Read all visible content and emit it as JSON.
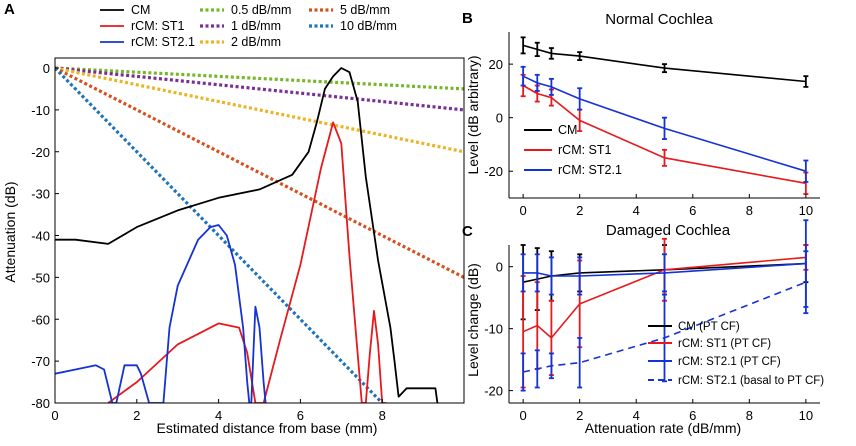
{
  "panel_letters": {
    "a": "A",
    "b": "B",
    "c": "C"
  },
  "chart_data": [
    {
      "id": "A",
      "type": "line",
      "xlabel": "Estimated distance from base (mm)",
      "ylabel": "Attenuation (dB)",
      "xlim": [
        0,
        10
      ],
      "ylim": [
        -80,
        2
      ],
      "xticks": [
        0,
        2,
        4,
        6,
        8
      ],
      "yticks": [
        0,
        -10,
        -20,
        -30,
        -40,
        -50,
        -60,
        -70,
        -80
      ],
      "legend": [
        {
          "label": "CM",
          "color": "#000000",
          "style": "solid"
        },
        {
          "label": "rCM: ST1",
          "color": "#e6191c",
          "style": "solid"
        },
        {
          "label": "rCM: ST2.1",
          "color": "#1532d6",
          "style": "solid"
        },
        {
          "label": "0.5 dB/mm",
          "color": "#76b62a",
          "style": "dotted"
        },
        {
          "label": "1 dB/mm",
          "color": "#7b2f92",
          "style": "dotted"
        },
        {
          "label": "2 dB/mm",
          "color": "#eab424",
          "style": "dotted"
        },
        {
          "label": "5 dB/mm",
          "color": "#d6501e",
          "style": "dotted"
        },
        {
          "label": "10 dB/mm",
          "color": "#1e73ba",
          "style": "dotted"
        }
      ],
      "series": [
        {
          "name": "0.5 dB/mm",
          "color": "#76b62a",
          "style": "dotted",
          "x": [
            0,
            10
          ],
          "y": [
            0,
            -5
          ]
        },
        {
          "name": "1 dB/mm",
          "color": "#7b2f92",
          "style": "dotted",
          "x": [
            0,
            10
          ],
          "y": [
            0,
            -10
          ]
        },
        {
          "name": "2 dB/mm",
          "color": "#eab424",
          "style": "dotted",
          "x": [
            0,
            10
          ],
          "y": [
            0,
            -20
          ]
        },
        {
          "name": "5 dB/mm",
          "color": "#d6501e",
          "style": "dotted",
          "x": [
            0,
            10
          ],
          "y": [
            0,
            -50
          ]
        },
        {
          "name": "10 dB/mm",
          "color": "#1e73ba",
          "style": "dotted",
          "x": [
            0,
            8
          ],
          "y": [
            0,
            -80
          ]
        },
        {
          "name": "CM",
          "color": "#000000",
          "style": "solid",
          "x": [
            0,
            0.5,
            1.3,
            2,
            3,
            4,
            5,
            5.8,
            6.2,
            6.4,
            6.6,
            6.8,
            7,
            7.2,
            7.4,
            7.6,
            7.9,
            8.2,
            8.3,
            8.4,
            8.6,
            9,
            9.3,
            9.35
          ],
          "y": [
            -41,
            -41,
            -42,
            -38,
            -34,
            -31,
            -29,
            -25.5,
            -20,
            -13,
            -5,
            -2,
            0,
            -1,
            -8,
            -26,
            -46,
            -62,
            -70,
            -78.5,
            -76.5,
            -76.5,
            -76.5,
            -80
          ]
        },
        {
          "name": "rCM: ST1",
          "color": "#e6191c",
          "style": "solid",
          "x": [
            1.3,
            2,
            3,
            4,
            4.5,
            4.7,
            4.9,
            5.1,
            5.5,
            6,
            6.5,
            6.8,
            7,
            7.2,
            7.5,
            7.6,
            7.7,
            7.8,
            7.9,
            8.0,
            8.1
          ],
          "y": [
            -80,
            -75,
            -66,
            -61,
            -62,
            -68,
            -80,
            -80,
            -65,
            -47,
            -24,
            -13,
            -18,
            -45,
            -80,
            -80,
            -68,
            -58,
            -66,
            -80,
            -80
          ]
        },
        {
          "name": "rCM: ST2.1",
          "color": "#1532d6",
          "style": "solid",
          "x": [
            0,
            0.5,
            1.0,
            1.2,
            1.4,
            1.5,
            1.7,
            2,
            2.1,
            2.3,
            2.4,
            2.5,
            2.65,
            2.8,
            3,
            3.5,
            3.8,
            4.0,
            4.2,
            4.4,
            4.6,
            4.7,
            4.75,
            4.8,
            4.85,
            4.9,
            5.0,
            5.1,
            5.15
          ],
          "y": [
            -73,
            -72,
            -71,
            -72,
            -80,
            -80,
            -71,
            -71,
            -73,
            -80,
            -80,
            -80,
            -80,
            -62,
            -52,
            -41,
            -38,
            -37.5,
            -40,
            -47,
            -62,
            -75,
            -80,
            -80,
            -68,
            -57,
            -62,
            -75,
            -80
          ]
        }
      ]
    },
    {
      "id": "B",
      "type": "line",
      "title": "Normal Cochlea",
      "xlabel": "",
      "ylabel": "Level (dB arbitrary)",
      "xlim": [
        -0.5,
        10.5
      ],
      "ylim": [
        -30,
        32
      ],
      "xticks": [
        0,
        2,
        4,
        6,
        8,
        10
      ],
      "yticks": [
        20,
        0,
        -20
      ],
      "legend_position": "bottom-left",
      "series": [
        {
          "name": "CM",
          "color": "#000000",
          "x": [
            0,
            0.5,
            1,
            2,
            5,
            10
          ],
          "y": [
            27,
            25.5,
            24,
            23,
            18.5,
            13.5
          ],
          "err": [
            3,
            2.5,
            2,
            1.5,
            1.5,
            2
          ]
        },
        {
          "name": "rCM: ST1",
          "color": "#e6191c",
          "x": [
            0,
            0.5,
            1,
            2,
            5,
            10
          ],
          "y": [
            12,
            9,
            7.5,
            -1,
            -15,
            -24.5
          ],
          "err": [
            4,
            3,
            3,
            4,
            3,
            4
          ]
        },
        {
          "name": "rCM: ST2.1",
          "color": "#1532d6",
          "x": [
            0,
            0.5,
            1,
            2,
            5,
            10
          ],
          "y": [
            15.5,
            13,
            11.5,
            7,
            -4,
            -20
          ],
          "err": [
            3.5,
            3,
            3,
            4,
            4,
            4
          ]
        }
      ]
    },
    {
      "id": "C",
      "type": "line",
      "title": "Damaged Cochlea",
      "xlabel": "Attenuation rate (dB/mm)",
      "ylabel": "Level change (dB)",
      "xlim": [
        -0.5,
        10.5
      ],
      "ylim": [
        -22,
        3.5
      ],
      "xticks": [
        0,
        2,
        4,
        6,
        8,
        10
      ],
      "yticks": [
        0,
        -10,
        -20
      ],
      "legend_position": "bottom-right",
      "series": [
        {
          "name": "CM (PT CF)",
          "color": "#000000",
          "style": "solid",
          "x": [
            0,
            0.5,
            1,
            2,
            5,
            10
          ],
          "y": [
            -2.5,
            -2,
            -1.5,
            -1,
            -0.5,
            0.5
          ],
          "err": [
            6,
            5,
            4,
            3,
            4,
            3
          ]
        },
        {
          "name": "rCM: ST1 (PT CF)",
          "color": "#e6191c",
          "style": "solid",
          "x": [
            0,
            0.5,
            1,
            2,
            5,
            10
          ],
          "y": [
            -10.5,
            -9.5,
            -11.5,
            -6,
            -0.5,
            1.5
          ],
          "err": [
            9,
            7,
            6,
            7,
            5,
            2
          ]
        },
        {
          "name": "rCM: ST2.1 (PT CF)",
          "color": "#1532d6",
          "style": "solid",
          "x": [
            0,
            0.5,
            1,
            2,
            5,
            10
          ],
          "y": [
            -1,
            -1,
            -1.5,
            -1.5,
            -1,
            0.5
          ],
          "err": [
            3,
            3,
            3,
            3,
            3,
            7
          ]
        },
        {
          "name": "rCM: ST2.1 (basal to PT CF)",
          "color": "#1532d6",
          "style": "dashed",
          "x": [
            0,
            0.5,
            1,
            2,
            5,
            10
          ],
          "y": [
            -17,
            -16.5,
            -16,
            -15.5,
            -11.5,
            -2.5
          ],
          "err": [
            3,
            3,
            2,
            4,
            7,
            5
          ]
        }
      ]
    }
  ]
}
